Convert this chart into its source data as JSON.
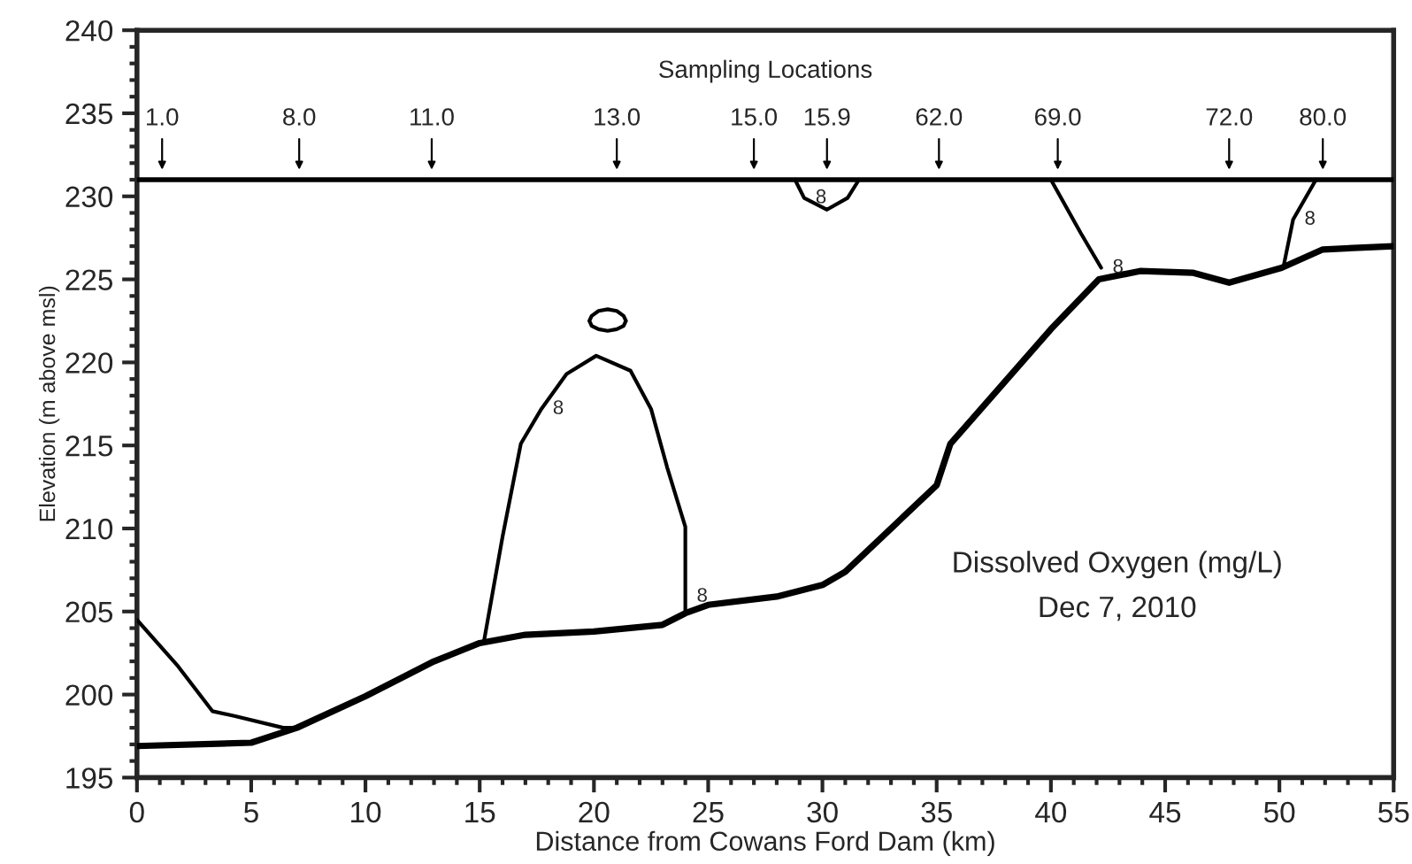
{
  "chart_data": {
    "type": "line",
    "title": "Dissolved Oxygen (mg/L)",
    "subtitle": "Dec 7, 2010",
    "xlabel": "Distance from Cowans Ford Dam (km)",
    "ylabel": "Elevation (m above msl)",
    "xlim": [
      0,
      55
    ],
    "xticks": [
      0,
      5,
      10,
      15,
      20,
      25,
      30,
      35,
      40,
      45,
      50,
      55
    ],
    "ylim": [
      195,
      240
    ],
    "yticks": [
      195,
      200,
      205,
      210,
      215,
      220,
      225,
      230,
      235,
      240
    ],
    "grid": false,
    "legend": false,
    "marker": "none",
    "line_style": "solid",
    "series": [
      {
        "color": "#000000",
        "x": [
          0,
          5,
          7,
          10,
          13,
          15,
          17,
          20,
          23,
          24,
          25,
          28,
          30,
          31,
          35,
          35.6,
          40,
          42.1,
          43.9,
          46.2,
          47.8,
          50.1,
          51.9,
          55
        ],
        "values": [
          196.9,
          197.1,
          198.0,
          199.9,
          202.0,
          203.1,
          203.6,
          203.8,
          204.2,
          204.9,
          205.4,
          205.9,
          206.6,
          207.4,
          212.6,
          215.1,
          222.0,
          225.0,
          225.5,
          225.4,
          224.8,
          225.7,
          226.8,
          227.0
        ]
      },
      {
        "color": "#000000",
        "x": [
          0,
          1.8,
          3.3,
          4.3,
          6.4,
          7,
          null,
          15.2,
          16.0,
          16.8,
          17.7,
          18.8,
          20.1,
          21.6,
          22.5,
          23.2,
          24.0,
          24.0,
          24.0,
          null,
          19.8,
          19.9,
          20.2,
          20.6,
          21.0,
          21.3,
          21.4,
          null,
          19.8,
          19.9,
          20.2,
          20.6,
          21.0,
          21.3,
          21.4,
          null,
          28.8,
          29.2,
          30.2,
          31.1,
          31.6,
          null,
          40.0,
          41.3,
          42.2,
          null,
          51.6,
          50.6,
          50.2
        ],
        "values": [
          204.5,
          201.7,
          199.0,
          198.7,
          198.0,
          198.0,
          null,
          203.3,
          209.5,
          215.1,
          217.2,
          219.3,
          220.4,
          219.5,
          217.2,
          213.7,
          210.1,
          206.6,
          204.9,
          null,
          222.5,
          222.8,
          223.1,
          223.2,
          223.1,
          222.8,
          222.5,
          null,
          222.5,
          222.2,
          222.0,
          221.9,
          222.0,
          222.2,
          222.5,
          null,
          231.0,
          229.9,
          229.2,
          229.9,
          231.0,
          null,
          231.0,
          227.8,
          225.7,
          null,
          231.0,
          228.6,
          225.9
        ]
      },
      {
        "color": "#000000",
        "x": [
          0,
          55
        ],
        "values": [
          231,
          231
        ]
      }
    ],
    "annotations": [
      "Sampling Locations",
      {
        "text": "1.0",
        "x": 1.1,
        "y": 231
      },
      {
        "text": "8.0",
        "x": 7.1,
        "y": 231
      },
      {
        "text": "11.0",
        "x": 12.9,
        "y": 231
      },
      {
        "text": "13.0",
        "x": 21.0,
        "y": 231
      },
      {
        "text": "15.0",
        "x": 27.0,
        "y": 231
      },
      {
        "text": "15.9",
        "x": 30.2,
        "y": 231
      },
      {
        "text": "62.0",
        "x": 35.1,
        "y": 231
      },
      {
        "text": "69.0",
        "x": 40.3,
        "y": 231
      },
      {
        "text": "72.0",
        "x": 47.8,
        "y": 231
      },
      {
        "text": "80.0",
        "x": 51.9,
        "y": 231
      },
      {
        "text": "8",
        "x": 17.7,
        "y": 217.2
      },
      {
        "text": "8",
        "x": 24.0,
        "y": 205.9
      },
      {
        "text": "8",
        "x": 29.2,
        "y": 229.9
      },
      {
        "text": "8",
        "x": 42.2,
        "y": 225.7
      },
      {
        "text": "8",
        "x": 50.6,
        "y": 228.6
      }
    ]
  }
}
